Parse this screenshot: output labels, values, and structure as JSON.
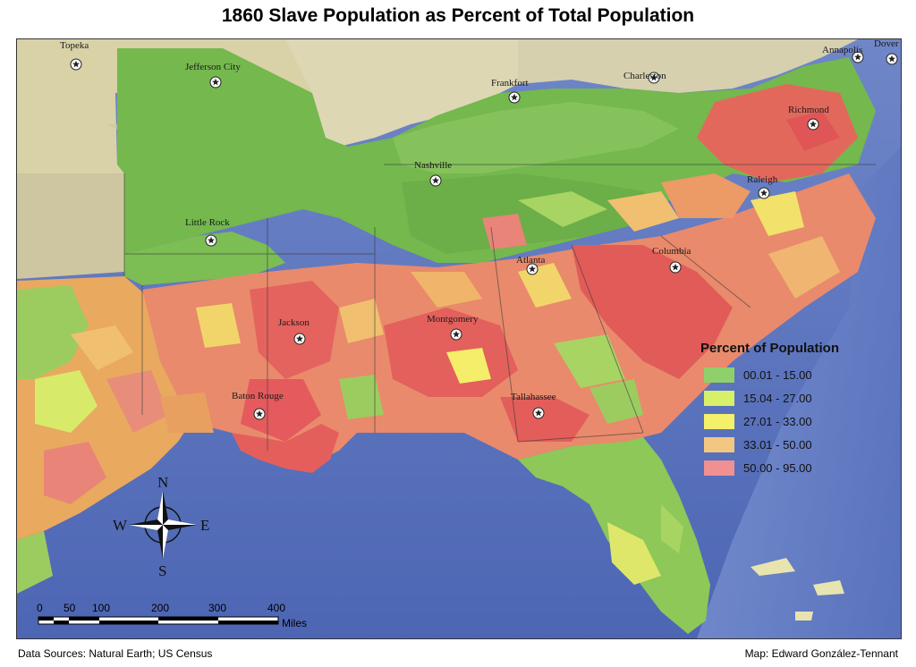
{
  "title": "1860 Slave Population as Percent of Total Population",
  "cities": [
    {
      "name": "Topeka"
    },
    {
      "name": "Jefferson City"
    },
    {
      "name": "Frankfort"
    },
    {
      "name": "Charleston"
    },
    {
      "name": "Annapolis"
    },
    {
      "name": "Dover"
    },
    {
      "name": "Richmond"
    },
    {
      "name": "Nashville"
    },
    {
      "name": "Raleigh"
    },
    {
      "name": "Little Rock"
    },
    {
      "name": "Atlanta"
    },
    {
      "name": "Columbia"
    },
    {
      "name": "Jackson"
    },
    {
      "name": "Montgomery"
    },
    {
      "name": "Baton Rouge"
    },
    {
      "name": "Tallahassee"
    }
  ],
  "legend": {
    "title": "Percent of Population",
    "items": [
      {
        "label": "00.01 - 15.00",
        "color": "#8fd06a"
      },
      {
        "label": "15.04 - 27.00",
        "color": "#d8ef6a"
      },
      {
        "label": "27.01 - 33.00",
        "color": "#f5f06a"
      },
      {
        "label": "33.01 - 50.00",
        "color": "#f2c782"
      },
      {
        "label": "50.00 - 95.00",
        "color": "#f09090"
      }
    ]
  },
  "compass": {
    "n": "N",
    "s": "S",
    "e": "E",
    "w": "W"
  },
  "scalebar": {
    "ticks": [
      "0",
      "50",
      "100",
      "200",
      "300",
      "400"
    ],
    "unit": "Miles"
  },
  "footer": {
    "left": "Data Sources: Natural Earth; US Census",
    "right": "Map: Edward González-Tennant"
  }
}
